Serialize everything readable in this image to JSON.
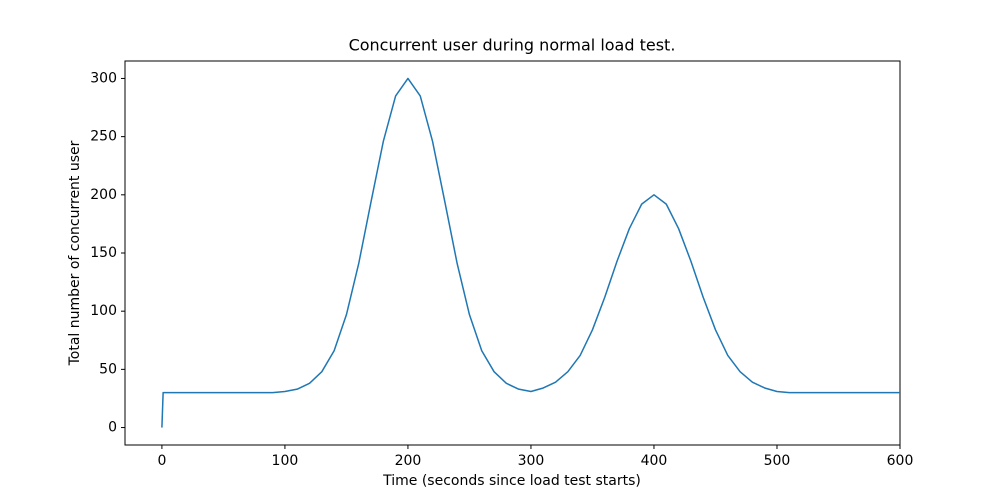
{
  "chart_data": {
    "type": "line",
    "title": "Concurrent user during normal load test.",
    "xlabel": "Time (seconds since load test starts)",
    "ylabel": "Total number of concurrent user",
    "x": [
      0,
      1,
      10,
      20,
      30,
      40,
      50,
      60,
      70,
      80,
      90,
      100,
      110,
      120,
      130,
      140,
      150,
      160,
      170,
      180,
      190,
      200,
      210,
      220,
      230,
      240,
      250,
      260,
      270,
      280,
      290,
      300,
      310,
      320,
      330,
      340,
      350,
      360,
      370,
      380,
      390,
      400,
      410,
      420,
      430,
      440,
      450,
      460,
      470,
      480,
      490,
      500,
      510,
      520,
      530,
      540,
      550,
      560,
      570,
      580,
      590,
      600
    ],
    "values": [
      0,
      30,
      30,
      30,
      30,
      30,
      30,
      30,
      30,
      30,
      30,
      31,
      33,
      38,
      48,
      66,
      97,
      141,
      194,
      246,
      285,
      300,
      285,
      246,
      194,
      141,
      97,
      66,
      48,
      38,
      33,
      31,
      34,
      39,
      48,
      62,
      84,
      112,
      143,
      171,
      192,
      200,
      192,
      171,
      143,
      112,
      84,
      62,
      48,
      39,
      34,
      31,
      30,
      30,
      30,
      30,
      30,
      30,
      30,
      30,
      30,
      30
    ],
    "color": "#1f77b4",
    "xlim": [
      -30,
      600
    ],
    "xticks": [
      0,
      100,
      200,
      300,
      400,
      500,
      600
    ],
    "ylim": [
      -15,
      315
    ],
    "yticks": [
      0,
      50,
      100,
      150,
      200,
      250,
      300
    ],
    "grid": false
  }
}
